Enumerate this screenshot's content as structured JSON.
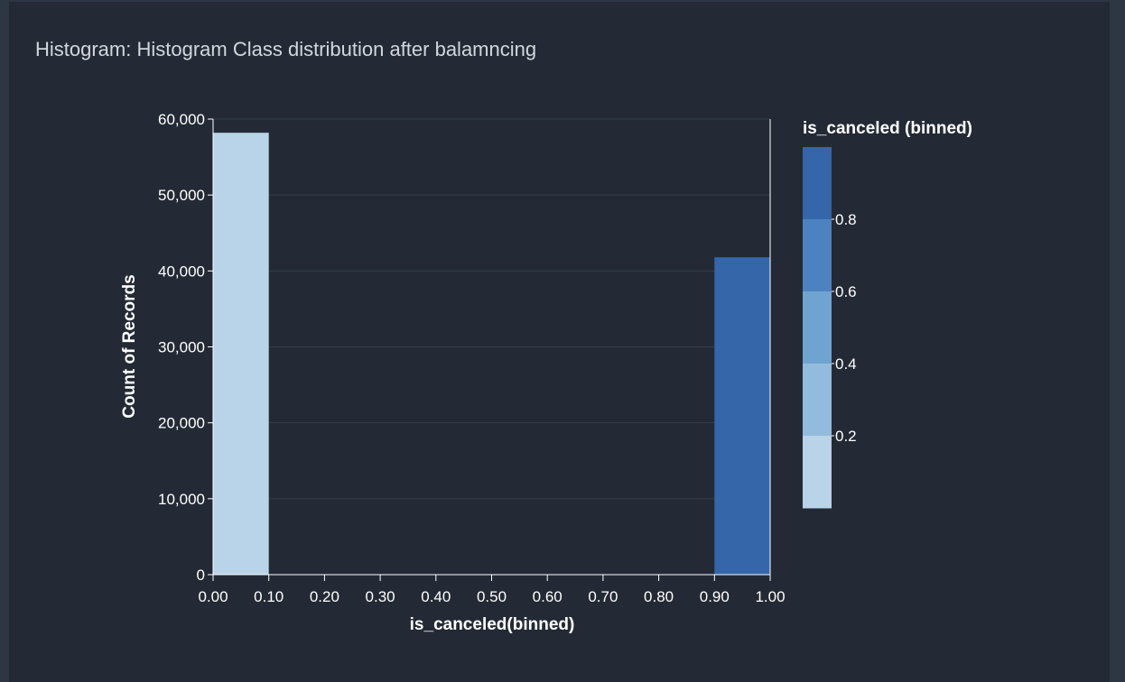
{
  "panel": {
    "title": "Histogram: Histogram Class distribution after balamncing"
  },
  "colors": {
    "page_bg": "#2d3744",
    "panel_bg": "#232a35",
    "gridline": "#353d49",
    "axis": "#ffffff",
    "bar_low": "#b9d3e8",
    "bar_high": "#3466a9"
  },
  "chart_data": {
    "type": "bar",
    "xlabel": "is_canceled(binned)",
    "ylabel": "Count of Records",
    "xlim": [
      0,
      1
    ],
    "ylim": [
      0,
      60000
    ],
    "grid": true,
    "x_ticks": [
      {
        "value": 0.0,
        "label": "0.00"
      },
      {
        "value": 0.1,
        "label": "0.10"
      },
      {
        "value": 0.2,
        "label": "0.20"
      },
      {
        "value": 0.3,
        "label": "0.30"
      },
      {
        "value": 0.4,
        "label": "0.40"
      },
      {
        "value": 0.5,
        "label": "0.50"
      },
      {
        "value": 0.6,
        "label": "0.60"
      },
      {
        "value": 0.7,
        "label": "0.70"
      },
      {
        "value": 0.8,
        "label": "0.80"
      },
      {
        "value": 0.9,
        "label": "0.90"
      },
      {
        "value": 1.0,
        "label": "1.00"
      }
    ],
    "y_ticks": [
      {
        "value": 0,
        "label": "0"
      },
      {
        "value": 10000,
        "label": "10,000"
      },
      {
        "value": 20000,
        "label": "20,000"
      },
      {
        "value": 30000,
        "label": "30,000"
      },
      {
        "value": 40000,
        "label": "40,000"
      },
      {
        "value": 50000,
        "label": "50,000"
      },
      {
        "value": 60000,
        "label": "60,000"
      }
    ],
    "bins": [
      {
        "x0": 0.0,
        "x1": 0.1,
        "count": 58200,
        "color": "#b9d3e8"
      },
      {
        "x0": 0.9,
        "x1": 1.0,
        "count": 41800,
        "color": "#3466a9"
      }
    ],
    "legend": {
      "title": "is_canceled (binned)",
      "placement": "right",
      "steps": [
        {
          "color": "#3466a9"
        },
        {
          "color": "#4c82bf"
        },
        {
          "color": "#6fa3d0"
        },
        {
          "color": "#93bbdd"
        },
        {
          "color": "#b9d3e8"
        }
      ],
      "labels": [
        "0.8",
        "0.6",
        "0.4",
        "0.2"
      ]
    }
  }
}
